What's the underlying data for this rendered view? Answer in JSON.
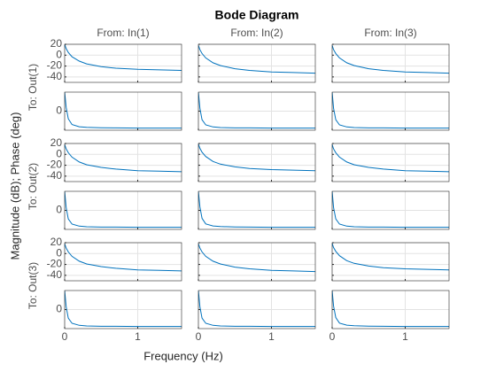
{
  "chart_data": {
    "type": "bode",
    "title": "Bode Diagram",
    "xlabel": "Frequency (Hz)",
    "ylabel": "Magnitude (dB); Phase (deg)",
    "inputs": [
      "From: In(1)",
      "From: In(2)",
      "From: In(3)"
    ],
    "outputs": [
      "To: Out(1)",
      "To: Out(2)",
      "To: Out(3)"
    ],
    "color": "#0072bd",
    "grid": true,
    "x": [
      0,
      0.02,
      0.05,
      0.1,
      0.2,
      0.3,
      0.5,
      0.7,
      1.0,
      1.3,
      1.6
    ],
    "xlim": [
      0,
      1.6
    ],
    "xticks": [
      0,
      1
    ],
    "magnitude_ylim": [
      -50,
      20
    ],
    "magnitude_yticks": [
      20,
      0,
      -20,
      -40
    ],
    "phase_ylim": [
      -100,
      100
    ],
    "phase_yticks": [
      0
    ],
    "responses": [
      [
        {
          "magnitude": [
            20,
            12,
            5,
            -3,
            -11,
            -16,
            -21,
            -24,
            -26,
            -27,
            -28
          ],
          "phase": [
            100,
            20,
            -40,
            -70,
            -82,
            -85,
            -87,
            -88,
            -89,
            -89,
            -89
          ]
        },
        {
          "magnitude": [
            18,
            10,
            3,
            -5,
            -14,
            -19,
            -25,
            -28,
            -31,
            -32,
            -33
          ],
          "phase": [
            100,
            15,
            -45,
            -72,
            -83,
            -86,
            -88,
            -88,
            -89,
            -89,
            -89
          ]
        },
        {
          "magnitude": [
            18,
            10,
            3,
            -5,
            -14,
            -19,
            -25,
            -28,
            -31,
            -32,
            -33
          ],
          "phase": [
            100,
            15,
            -45,
            -72,
            -83,
            -86,
            -88,
            -88,
            -89,
            -89,
            -89
          ]
        }
      ],
      [
        {
          "magnitude": [
            18,
            10,
            3,
            -5,
            -14,
            -19,
            -24,
            -27,
            -30,
            -31,
            -32
          ],
          "phase": [
            100,
            15,
            -45,
            -72,
            -83,
            -86,
            -88,
            -88,
            -89,
            -89,
            -89
          ]
        },
        {
          "magnitude": [
            19,
            11,
            4,
            -4,
            -13,
            -18,
            -23,
            -26,
            -28,
            -29,
            -30
          ],
          "phase": [
            100,
            18,
            -42,
            -71,
            -82,
            -85,
            -87,
            -88,
            -89,
            -89,
            -89
          ]
        },
        {
          "magnitude": [
            18,
            10,
            3,
            -5,
            -14,
            -19,
            -24,
            -27,
            -30,
            -31,
            -32
          ],
          "phase": [
            100,
            15,
            -45,
            -72,
            -83,
            -86,
            -88,
            -88,
            -89,
            -89,
            -89
          ]
        }
      ],
      [
        {
          "magnitude": [
            18,
            10,
            3,
            -5,
            -14,
            -19,
            -24,
            -27,
            -30,
            -31,
            -32
          ],
          "phase": [
            100,
            15,
            -45,
            -72,
            -83,
            -86,
            -88,
            -88,
            -89,
            -89,
            -89
          ]
        },
        {
          "magnitude": [
            18,
            10,
            3,
            -5,
            -14,
            -19,
            -25,
            -28,
            -31,
            -32,
            -33
          ],
          "phase": [
            100,
            15,
            -45,
            -72,
            -83,
            -86,
            -88,
            -88,
            -89,
            -89,
            -89
          ]
        },
        {
          "magnitude": [
            19,
            11,
            4,
            -4,
            -13,
            -18,
            -23,
            -26,
            -28,
            -29,
            -30
          ],
          "phase": [
            100,
            18,
            -42,
            -71,
            -82,
            -85,
            -87,
            -88,
            -89,
            -89,
            -89
          ]
        }
      ]
    ]
  }
}
